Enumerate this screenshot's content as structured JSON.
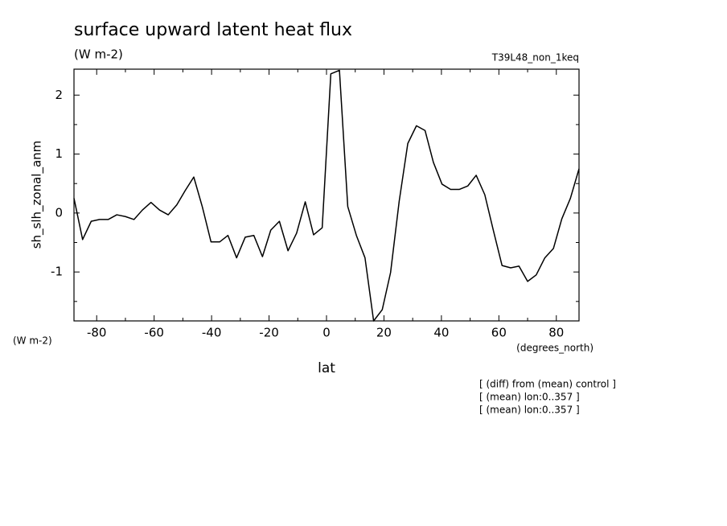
{
  "chart_data": {
    "type": "line",
    "title": "surface upward latent heat flux",
    "subtitle": "(W m-2)",
    "experiment": "T39L48_non_1keq",
    "y_label": "sh_slh_zonal_anm",
    "y_units": "(W m-2)",
    "x_units": "(degrees_north)",
    "x_label": "lat",
    "notes": [
      "[ (diff) from (mean) control ]",
      "[ (mean) lon:0..357 ]",
      "[ (mean) lon:0..357 ]"
    ],
    "xlim": [
      -87.9,
      87.9
    ],
    "ylim": [
      -1.83,
      2.44
    ],
    "xticks": [
      -80,
      -60,
      -40,
      -20,
      0,
      20,
      40,
      60,
      80
    ],
    "yticks": [
      -1,
      0,
      1,
      2
    ],
    "xminorticks": [
      -70,
      -50,
      -30,
      -10,
      10,
      30,
      50,
      70
    ],
    "yminorticks": [
      -1.5,
      -0.5,
      0.5,
      1.5
    ],
    "x": [
      -87.9,
      -84.9,
      -81.9,
      -79.0,
      -76.0,
      -73.0,
      -70.0,
      -67.0,
      -64.1,
      -61.1,
      -58.1,
      -55.1,
      -52.1,
      -49.2,
      -46.2,
      -43.2,
      -40.2,
      -37.2,
      -34.3,
      -31.3,
      -28.3,
      -25.3,
      -22.3,
      -19.4,
      -16.4,
      -13.4,
      -10.4,
      -7.4,
      -4.5,
      -1.5,
      1.5,
      4.5,
      7.4,
      10.4,
      13.4,
      16.4,
      19.4,
      22.3,
      25.3,
      28.3,
      31.3,
      34.3,
      37.2,
      40.2,
      43.2,
      46.2,
      49.2,
      52.1,
      55.1,
      58.1,
      61.1,
      64.1,
      67.0,
      70.0,
      73.0,
      76.0,
      79.0,
      81.9,
      84.9,
      87.9
    ],
    "series": [
      {
        "name": "sh_slh_zonal_anm",
        "color": "#000000",
        "values": [
          0.25,
          -0.45,
          -0.14,
          -0.11,
          -0.11,
          -0.03,
          -0.06,
          -0.11,
          0.05,
          0.18,
          0.05,
          -0.03,
          0.14,
          0.38,
          0.61,
          0.1,
          -0.49,
          -0.49,
          -0.38,
          -0.76,
          -0.41,
          -0.38,
          -0.74,
          -0.29,
          -0.14,
          -0.64,
          -0.34,
          0.19,
          -0.37,
          -0.25,
          2.36,
          2.42,
          0.11,
          -0.38,
          -0.76,
          -1.83,
          -1.64,
          -1.01,
          0.2,
          1.18,
          1.48,
          1.4,
          0.86,
          0.49,
          0.4,
          0.4,
          0.46,
          0.64,
          0.31,
          -0.3,
          -0.89,
          -0.93,
          -0.9,
          -1.16,
          -1.05,
          -0.76,
          -0.6,
          -0.1,
          0.25,
          0.75
        ]
      }
    ]
  }
}
